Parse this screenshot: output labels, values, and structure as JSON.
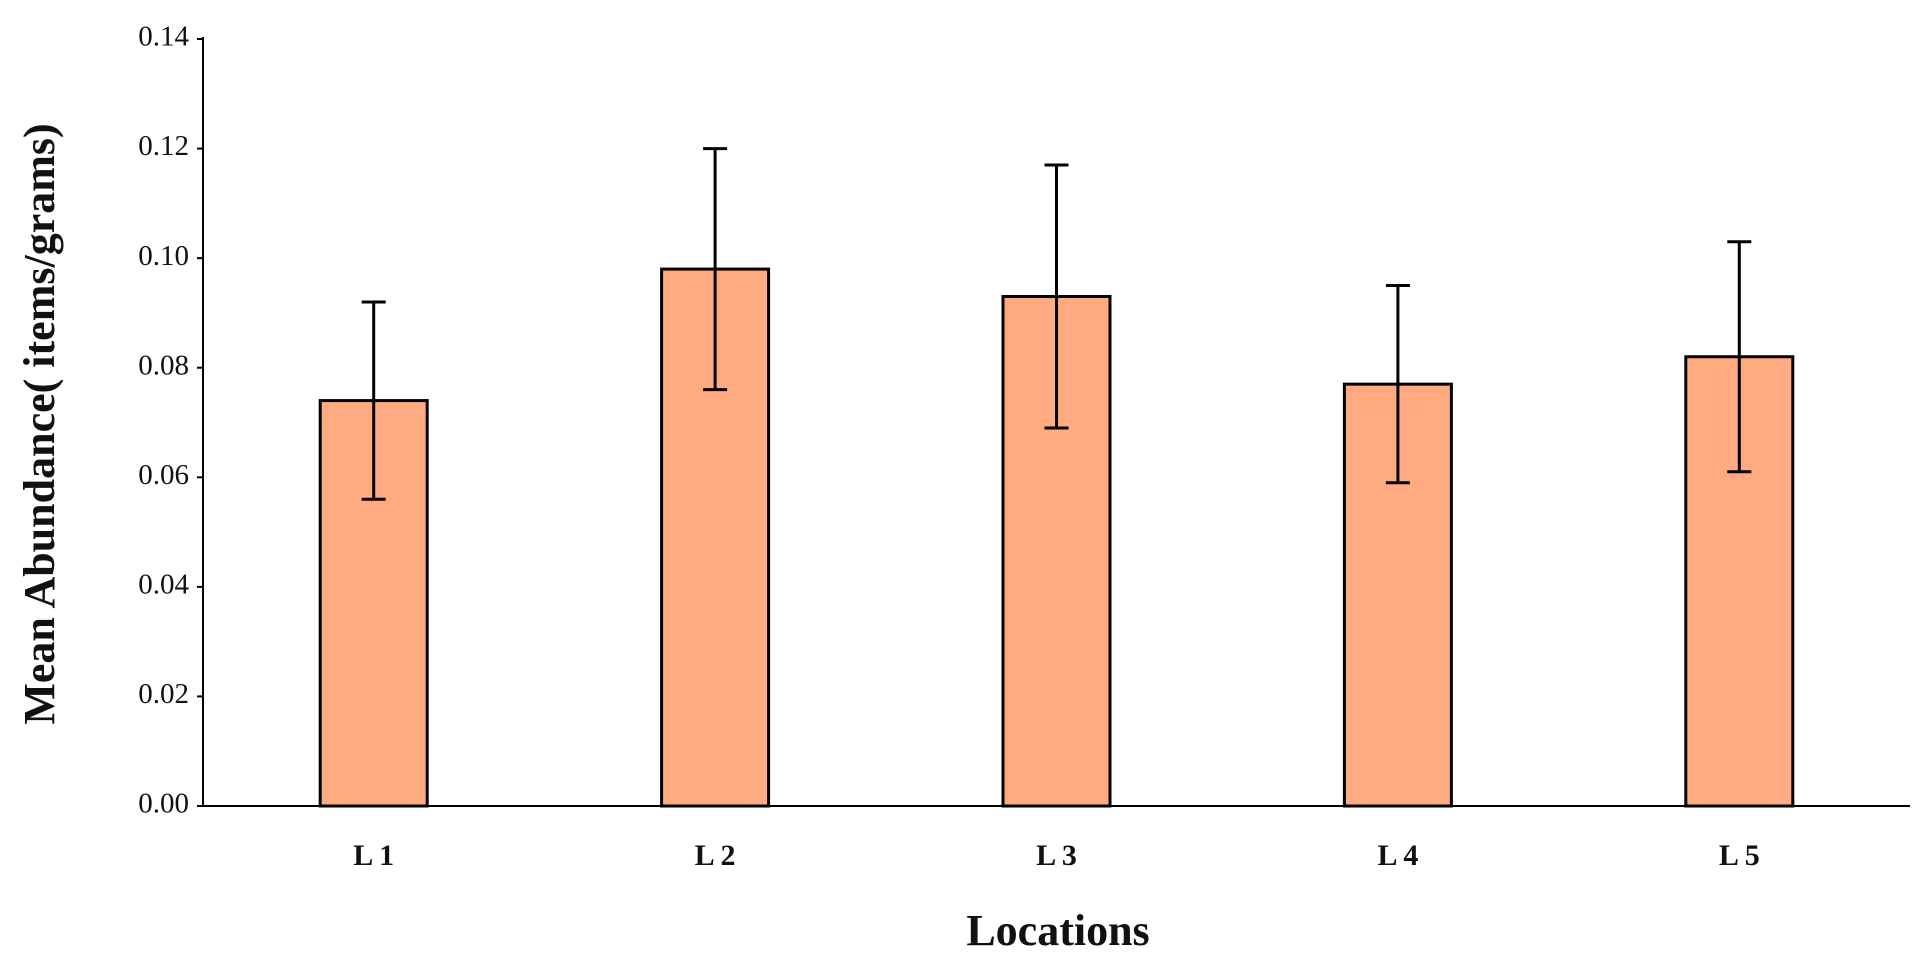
{
  "chart_data": {
    "type": "bar",
    "x_label": "Locations",
    "y_label": "Mean Abundance( items/grams)",
    "categories": [
      "L 1",
      "L 2",
      "L 3",
      "L 4",
      "L 5"
    ],
    "values": [
      0.074,
      0.098,
      0.093,
      0.077,
      0.082
    ],
    "errors": [
      0.018,
      0.022,
      0.024,
      0.018,
      0.021
    ],
    "color": "#ffaa80",
    "ylim": [
      0,
      0.14
    ],
    "yticks": [
      {
        "value": 0,
        "label": "0.00"
      },
      {
        "value": 0.02,
        "label": "0.02"
      },
      {
        "value": 0.04,
        "label": "0.04"
      },
      {
        "value": 0.06,
        "label": "0.06"
      },
      {
        "value": 0.08,
        "label": "0.08"
      },
      {
        "value": 0.1,
        "label": "0.10"
      },
      {
        "value": 0.12,
        "label": "0.12"
      },
      {
        "value": 0.14,
        "label": "0.14"
      }
    ],
    "grid": false
  }
}
